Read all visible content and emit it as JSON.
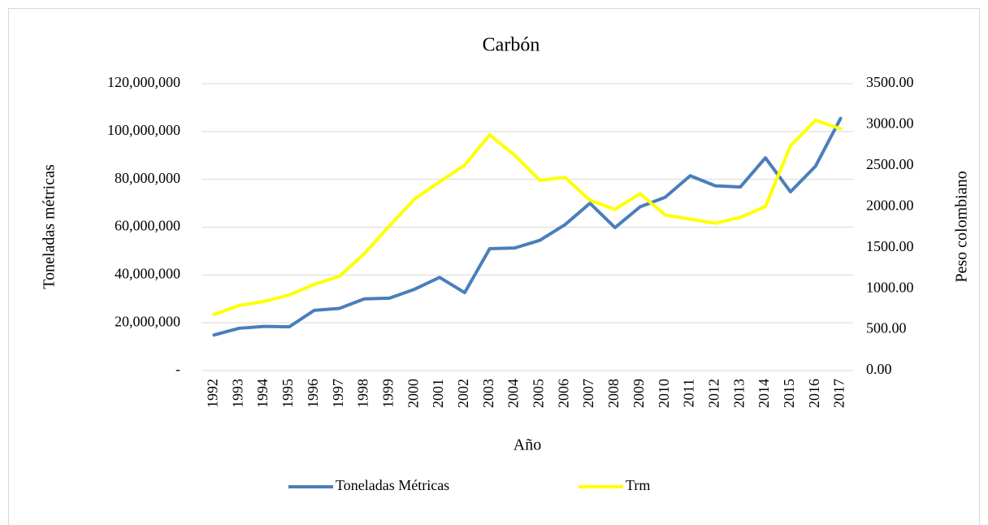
{
  "chart_data": {
    "type": "line",
    "title": "Carbón",
    "x_label": "Año",
    "y_label": "Toneladas métricas",
    "y2_label": "Peso colombiano",
    "categories": [
      "1992",
      "1993",
      "1994",
      "1995",
      "1996",
      "1997",
      "1998",
      "1999",
      "2000",
      "2001",
      "2002",
      "2003",
      "2004",
      "2005",
      "2006",
      "2007",
      "2008",
      "2009",
      "2010",
      "2011",
      "2012",
      "2013",
      "2014",
      "2015",
      "2016",
      "2017"
    ],
    "series": [
      {
        "name": "Toneladas Métricas",
        "color": "#4a7ebb",
        "values": [
          14900000,
          17700000,
          18500000,
          18300000,
          25200000,
          26000000,
          30000000,
          30300000,
          34000000,
          39000000,
          32600000,
          51000000,
          51300000,
          54500000,
          61000000,
          70000000,
          59800000,
          68500000,
          72500000,
          81500000,
          77300000,
          76800000,
          89000000,
          74800000,
          85500000,
          105500000
        ]
      },
      {
        "name": "Trm",
        "color": "#ffff00",
        "axis": "y2",
        "values": [
          684,
          794,
          843,
          923,
          1052,
          1150,
          1427,
          1766,
          2093,
          2302,
          2507,
          2877,
          2626,
          2321,
          2358,
          2078,
          1967,
          2158,
          1898,
          1848,
          1798,
          1869,
          2001,
          2742,
          3054,
          2951
        ]
      }
    ],
    "ylim": [
      0,
      120000000
    ],
    "yticks": [
      {
        "value": 0,
        "label": "-"
      },
      {
        "value": 20000000,
        "label": "20,000,000"
      },
      {
        "value": 40000000,
        "label": "40,000,000"
      },
      {
        "value": 60000000,
        "label": "60,000,000"
      },
      {
        "value": 80000000,
        "label": "80,000,000"
      },
      {
        "value": 100000000,
        "label": "100,000,000"
      },
      {
        "value": 120000000,
        "label": "120,000,000"
      }
    ],
    "y2lim": [
      0,
      3500
    ],
    "y2ticks": [
      {
        "value": 0,
        "label": "0.00"
      },
      {
        "value": 500,
        "label": "500.00"
      },
      {
        "value": 1000,
        "label": "1000.00"
      },
      {
        "value": 1500,
        "label": "1500.00"
      },
      {
        "value": 2000,
        "label": "2000.00"
      },
      {
        "value": 2500,
        "label": "2500.00"
      },
      {
        "value": 3000,
        "label": "3000.00"
      },
      {
        "value": 3500,
        "label": "3500.00"
      }
    ],
    "grid": true,
    "legend": "bottom"
  }
}
